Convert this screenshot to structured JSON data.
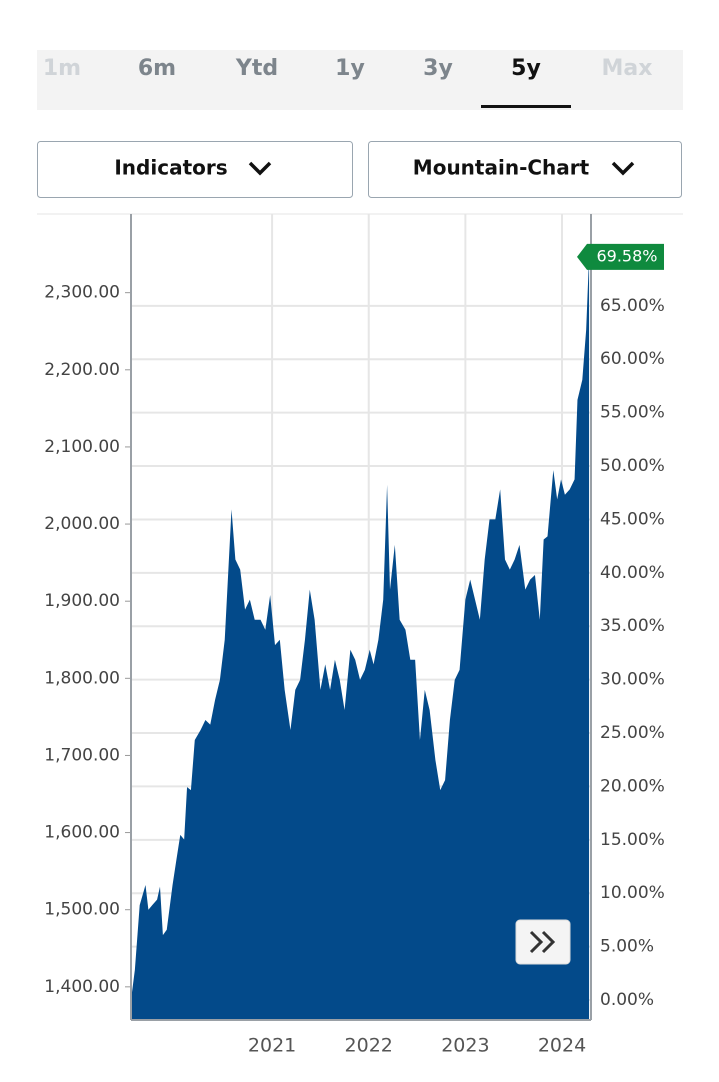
{
  "tabs": [
    "1m",
    "6m",
    "Ytd",
    "1y",
    "3y",
    "5y",
    "Max"
  ],
  "selected_tab": 5,
  "disabled_tabs": [
    0,
    6
  ],
  "buttons": [
    "Indicators",
    "Mountain-Chart"
  ],
  "chart_data": {
    "type": "area",
    "color": "#034a8a",
    "x": [
      2019.54,
      2019.58,
      2019.63,
      2019.69,
      2019.72,
      2019.76,
      2019.81,
      2019.84,
      2019.87,
      2019.91,
      2019.97,
      2020.01,
      2020.05,
      2020.09,
      2020.12,
      2020.16,
      2020.2,
      2020.26,
      2020.31,
      2020.36,
      2020.41,
      2020.46,
      2020.51,
      2020.58,
      2020.62,
      2020.67,
      2020.72,
      2020.77,
      2020.82,
      2020.88,
      2020.93,
      2020.98,
      2021.03,
      2021.08,
      2021.13,
      2021.19,
      2021.24,
      2021.29,
      2021.34,
      2021.39,
      2021.44,
      2021.5,
      2021.55,
      2021.6,
      2021.65,
      2021.7,
      2021.75,
      2021.81,
      2021.86,
      2021.91,
      2021.96,
      2022.01,
      2022.05,
      2022.1,
      2022.15,
      2022.19,
      2022.22,
      2022.27,
      2022.32,
      2022.38,
      2022.43,
      2022.48,
      2022.53,
      2022.58,
      2022.63,
      2022.69,
      2022.74,
      2022.79,
      2022.84,
      2022.89,
      2022.94,
      2023.0,
      2023.05,
      2023.1,
      2023.15,
      2023.2,
      2023.25,
      2023.31,
      2023.36,
      2023.41,
      2023.46,
      2023.51,
      2023.56,
      2023.62,
      2023.67,
      2023.72,
      2023.77,
      2023.81,
      2023.85,
      2023.91,
      2023.95,
      2023.99,
      2024.03,
      2024.08,
      2024.13,
      2024.16,
      2024.21,
      2024.25,
      2024.28
    ],
    "values": [
      1383,
      1422,
      1506,
      1532,
      1500,
      1506,
      1513,
      1530,
      1467,
      1474,
      1532,
      1565,
      1597,
      1591,
      1659,
      1655,
      1720,
      1733,
      1746,
      1740,
      1772,
      1798,
      1850,
      2019,
      1954,
      1941,
      1889,
      1902,
      1876,
      1876,
      1863,
      1908,
      1843,
      1850,
      1785,
      1733,
      1785,
      1798,
      1850,
      1915,
      1876,
      1785,
      1818,
      1785,
      1824,
      1798,
      1759,
      1837,
      1824,
      1798,
      1811,
      1837,
      1818,
      1850,
      1902,
      2051,
      1915,
      1973,
      1876,
      1863,
      1824,
      1824,
      1720,
      1785,
      1759,
      1694,
      1655,
      1668,
      1746,
      1798,
      1811,
      1902,
      1928,
      1902,
      1876,
      1954,
      2006,
      2006,
      2045,
      1954,
      1941,
      1954,
      1973,
      1915,
      1928,
      1934,
      1876,
      1980,
      1984,
      2070,
      2032,
      2058,
      2038,
      2045,
      2058,
      2161,
      2187,
      2252,
      2347
    ],
    "xlim": [
      2019.54,
      2024.3
    ],
    "xticks": [
      2021,
      2022,
      2023,
      2024
    ],
    "ylim": [
      1357,
      2402
    ],
    "yticks": [
      {
        "value": 1400,
        "label": "1,400.00"
      },
      {
        "value": 1500,
        "label": "1,500.00"
      },
      {
        "value": 1600,
        "label": "1,600.00"
      },
      {
        "value": 1700,
        "label": "1,700.00"
      },
      {
        "value": 1800,
        "label": "1,800.00"
      },
      {
        "value": 1900,
        "label": "1,900.00"
      },
      {
        "value": 2000,
        "label": "2,000.00"
      },
      {
        "value": 2100,
        "label": "2,100.00"
      },
      {
        "value": 2200,
        "label": "2,200.00"
      },
      {
        "value": 2300,
        "label": "2,300.00"
      }
    ],
    "y2lim": [
      -1.87,
      73.6
    ],
    "y2ticks": [
      {
        "value": 0,
        "label": "0.00%"
      },
      {
        "value": 5,
        "label": "5.00%"
      },
      {
        "value": 10,
        "label": "10.00%"
      },
      {
        "value": 15,
        "label": "15.00%"
      },
      {
        "value": 20,
        "label": "20.00%"
      },
      {
        "value": 25,
        "label": "25.00%"
      },
      {
        "value": 30,
        "label": "30.00%"
      },
      {
        "value": 35,
        "label": "35.00%"
      },
      {
        "value": 40,
        "label": "40.00%"
      },
      {
        "value": 45,
        "label": "45.00%"
      },
      {
        "value": 50,
        "label": "50.00%"
      },
      {
        "value": 55,
        "label": "55.00%"
      },
      {
        "value": 60,
        "label": "60.00%"
      },
      {
        "value": 65,
        "label": "65.00%"
      }
    ],
    "last_marker": {
      "value": 69.58,
      "label": "69.58%"
    },
    "grid": true
  }
}
